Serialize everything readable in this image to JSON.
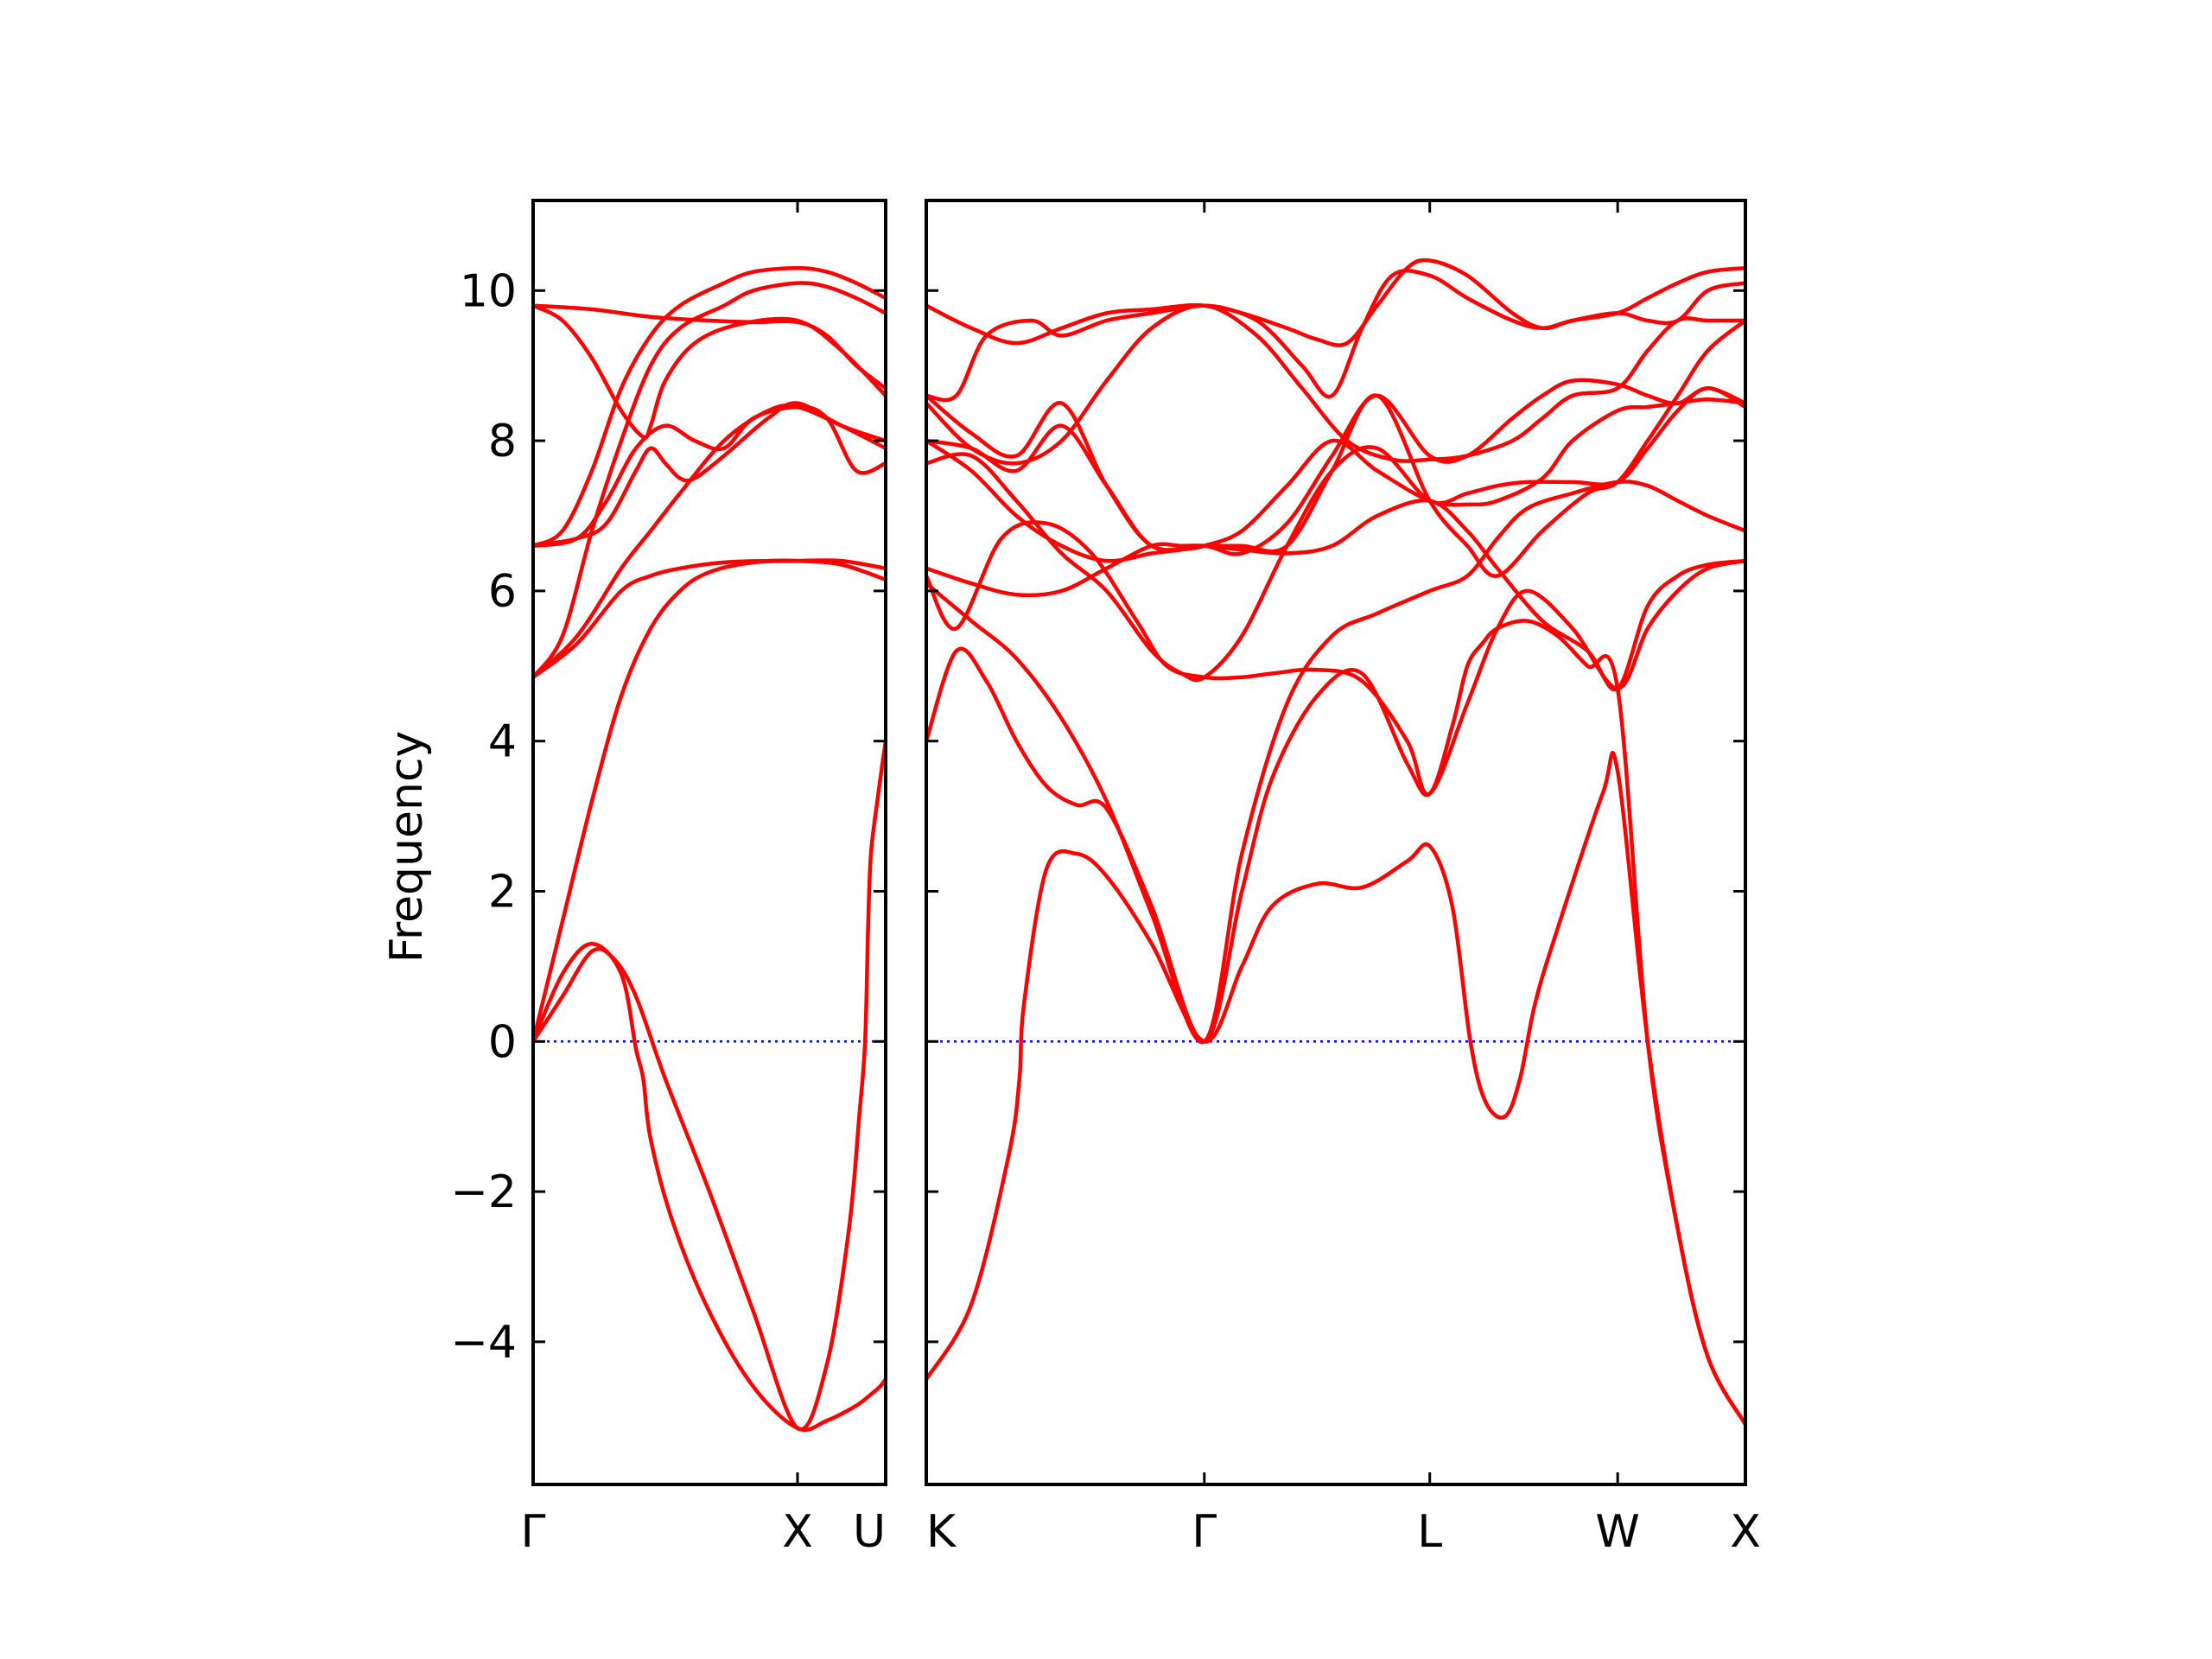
{
  "chart_data": {
    "type": "line",
    "title": "",
    "ylabel": "Frequency",
    "ylim": [
      -5.9,
      11.2
    ],
    "yticks": [
      -4,
      -2,
      0,
      2,
      4,
      6,
      8,
      10
    ],
    "ytick_labels": [
      "−4",
      "−2",
      "0",
      "2",
      "4",
      "6",
      "8",
      "10"
    ],
    "grid": false,
    "zero_line": {
      "y": 0,
      "color": "#0000ff",
      "style": "dotted"
    },
    "band_color": "#ff0000",
    "panels": [
      {
        "name": "panel-gamma-x-u",
        "xlim": [
          0,
          2.4
        ],
        "ticks": [
          {
            "x": 0,
            "label": "Γ"
          },
          {
            "x": 1.8,
            "label": "X"
          },
          {
            "x": 2.4,
            "label": "U"
          }
        ],
        "bands": [
          {
            "x": [
              0,
              0.2,
              0.4,
              0.6,
              0.7,
              0.75,
              0.8,
              0.95,
              1.2,
              1.5,
              1.8,
              2.0,
              2.2,
              2.3,
              2.36,
              2.4
            ],
            "y": [
              0,
              0.9,
              1.3,
              0.9,
              -0.1,
              -0.5,
              -1.3,
              -2.4,
              -3.6,
              -4.6,
              -5.15,
              -5.05,
              -4.85,
              -4.7,
              -4.6,
              -4.5
            ]
          },
          {
            "x": [
              0,
              0.2,
              0.4,
              0.55,
              0.7,
              0.9,
              1.2,
              1.5,
              1.8,
              2.0,
              2.15,
              2.22,
              2.26,
              2.28,
              2.3,
              2.35,
              2.4
            ],
            "y": [
              0,
              0.6,
              1.2,
              1.1,
              0.6,
              -0.5,
              -2.0,
              -3.6,
              -5.15,
              -4.3,
              -2.5,
              -1.0,
              0.0,
              1.5,
              2.5,
              3.3,
              4.0
            ]
          },
          {
            "x": [
              0,
              0.2,
              0.4,
              0.6,
              0.8,
              1.0,
              1.2,
              1.5,
              1.8,
              2.1,
              2.4
            ],
            "y": [
              0,
              1.6,
              3.2,
              4.6,
              5.5,
              6.0,
              6.25,
              6.38,
              6.4,
              6.4,
              6.3
            ]
          },
          {
            "x": [
              0,
              0.3,
              0.6,
              0.8,
              1.0,
              1.3,
              1.6,
              1.8,
              2.1,
              2.4
            ],
            "y": [
              4.85,
              5.3,
              6.0,
              6.2,
              6.3,
              6.38,
              6.4,
              6.4,
              6.35,
              6.15
            ]
          },
          {
            "x": [
              0,
              0.3,
              0.6,
              0.8,
              1.0,
              1.3,
              1.6,
              1.8,
              2.1,
              2.4
            ],
            "y": [
              4.85,
              5.4,
              6.3,
              6.8,
              7.3,
              8.0,
              8.4,
              8.45,
              8.2,
              7.9
            ]
          },
          {
            "x": [
              0,
              0.3,
              0.5,
              0.7,
              0.8,
              0.9,
              1.0,
              1.1,
              1.3,
              1.6,
              1.8,
              2.1,
              2.4
            ],
            "y": [
              6.6,
              6.7,
              6.9,
              7.6,
              7.9,
              7.7,
              7.5,
              7.5,
              7.8,
              8.3,
              8.5,
              8.2,
              8.0
            ]
          },
          {
            "x": [
              0,
              0.3,
              0.5,
              0.7,
              0.9,
              1.1,
              1.3,
              1.5,
              1.8,
              2.0,
              2.2,
              2.4
            ],
            "y": [
              6.6,
              6.7,
              7.2,
              7.9,
              8.2,
              8.0,
              7.9,
              8.3,
              8.45,
              8.3,
              7.6,
              7.7
            ]
          },
          {
            "x": [
              0,
              0.2,
              0.4,
              0.6,
              0.8,
              1.0,
              1.3,
              1.5,
              1.8,
              2.0,
              2.2,
              2.4
            ],
            "y": [
              6.6,
              6.8,
              7.6,
              8.7,
              9.4,
              9.8,
              10.1,
              10.25,
              10.3,
              10.25,
              10.1,
              9.9
            ]
          },
          {
            "x": [
              0,
              0.2,
              0.4,
              0.6,
              0.8,
              1.0,
              1.3,
              1.5,
              1.8,
              2.0,
              2.2,
              2.4
            ],
            "y": [
              4.85,
              5.4,
              6.8,
              8.0,
              9.0,
              9.5,
              9.8,
              10.0,
              10.1,
              10.05,
              9.9,
              9.7
            ]
          },
          {
            "x": [
              0,
              0.2,
              0.4,
              0.6,
              0.75,
              0.8,
              0.9,
              1.1,
              1.4,
              1.8,
              2.1,
              2.4
            ],
            "y": [
              9.8,
              9.6,
              9.1,
              8.4,
              8.05,
              8.2,
              8.8,
              9.3,
              9.55,
              9.6,
              9.2,
              8.6
            ]
          },
          {
            "x": [
              0,
              0.4,
              0.8,
              1.2,
              1.5,
              1.8,
              2.0,
              2.2,
              2.4
            ],
            "y": [
              9.8,
              9.75,
              9.65,
              9.6,
              9.58,
              9.58,
              9.4,
              9.0,
              8.7
            ]
          }
        ]
      },
      {
        "name": "panel-k-gamma-l-w-x",
        "xlim": [
          0,
          5.45
        ],
        "ticks": [
          {
            "x": 0,
            "label": "K"
          },
          {
            "x": 1.85,
            "label": "Γ"
          },
          {
            "x": 3.35,
            "label": "L"
          },
          {
            "x": 4.6,
            "label": "W"
          },
          {
            "x": 5.45,
            "label": "X"
          }
        ],
        "bands": [
          {
            "x": [
              0,
              0.3,
              0.55,
              0.62,
              0.65,
              0.8,
              1.0,
              1.2,
              1.5,
              1.85,
              2.1,
              2.3,
              2.6,
              2.9,
              3.2,
              3.35,
              3.5,
              3.62,
              3.72,
              3.85,
              3.95,
              4.05,
              4.2,
              4.5,
              4.6,
              4.8,
              5.0,
              5.2,
              5.45
            ],
            "y": [
              -4.5,
              -3.5,
              -1.5,
              -0.5,
              0.5,
              2.3,
              2.5,
              2.2,
              1.3,
              0.0,
              1.0,
              1.8,
              2.1,
              2.05,
              2.4,
              2.6,
              1.8,
              0.0,
              -0.8,
              -1.0,
              -0.5,
              0.5,
              1.5,
              3.3,
              3.6,
              0.0,
              -2.5,
              -4.2,
              -5.1
            ]
          },
          {
            "x": [
              0,
              0.2,
              0.4,
              0.6,
              0.8,
              1.0,
              1.2,
              1.5,
              1.85,
              2.1,
              2.3,
              2.6,
              2.9,
              3.2,
              3.35,
              3.5,
              3.6,
              3.7,
              3.8,
              4.0,
              4.2,
              4.4,
              4.6,
              4.8,
              5.0,
              5.2,
              5.45
            ],
            "y": [
              4.0,
              5.2,
              4.8,
              4.0,
              3.4,
              3.15,
              3.1,
              1.8,
              0.0,
              2.0,
              3.5,
              4.6,
              4.9,
              3.7,
              3.3,
              4.2,
              5.0,
              5.3,
              5.5,
              5.6,
              5.4,
              5.0,
              4.7,
              0.0,
              -2.5,
              -4.2,
              -5.1
            ]
          },
          {
            "x": [
              0,
              0.3,
              0.6,
              0.9,
              1.2,
              1.5,
              1.85,
              2.1,
              2.4,
              2.7,
              3.0,
              3.35,
              3.6,
              3.8,
              4.0,
              4.3,
              4.6,
              4.8,
              5.0,
              5.2,
              5.45
            ],
            "y": [
              6.1,
              5.6,
              5.1,
              4.3,
              3.2,
              1.7,
              0.0,
              2.5,
              4.5,
              5.4,
              5.7,
              6.0,
              6.2,
              6.7,
              7.1,
              7.3,
              7.45,
              7.4,
              7.2,
              7.0,
              6.8
            ]
          },
          {
            "x": [
              0,
              0.2,
              0.5,
              0.8,
              1.1,
              1.4,
              1.6,
              1.85,
              2.1,
              2.3,
              2.6,
              2.9,
              3.2,
              3.35,
              3.6,
              3.8,
              4.0,
              4.3,
              4.6,
              4.8,
              5.0,
              5.2,
              5.45
            ],
            "y": [
              6.2,
              5.5,
              6.7,
              6.9,
              6.5,
              5.6,
              5.0,
              4.85,
              4.85,
              4.9,
              4.95,
              4.8,
              4.0,
              3.3,
              4.5,
              5.5,
              6.0,
              5.5,
              4.7,
              5.5,
              6.0,
              6.3,
              6.4
            ]
          },
          {
            "x": [
              0,
              0.3,
              0.6,
              0.9,
              1.2,
              1.5,
              1.7,
              1.85,
              2.1,
              2.4,
              2.7,
              3.0,
              3.35,
              3.6,
              3.8,
              4.1,
              4.4,
              4.6,
              4.8,
              5.0,
              5.2,
              5.45
            ],
            "y": [
              6.3,
              6.1,
              5.95,
              6.0,
              6.3,
              6.6,
              6.6,
              6.6,
              6.55,
              6.5,
              6.6,
              7.0,
              7.2,
              6.8,
              6.3,
              5.6,
              5.2,
              4.7,
              5.8,
              6.2,
              6.35,
              6.4
            ]
          },
          {
            "x": [
              0,
              0.3,
              0.6,
              0.9,
              1.2,
              1.5,
              1.7,
              1.85,
              2.1,
              2.4,
              2.7,
              3.0,
              3.35,
              3.6,
              3.8,
              4.0,
              4.3,
              4.6,
              4.8,
              5.0,
              5.2,
              5.45
            ],
            "y": [
              7.7,
              7.8,
              7.2,
              6.5,
              6.0,
              5.2,
              4.9,
              4.85,
              5.4,
              6.6,
              7.6,
              7.9,
              7.2,
              7.3,
              7.4,
              7.45,
              7.45,
              7.45,
              7.9,
              8.4,
              8.7,
              8.45
            ]
          },
          {
            "x": [
              0,
              0.3,
              0.6,
              0.9,
              1.2,
              1.5,
              1.7,
              1.85,
              2.1,
              2.4,
              2.7,
              3.0,
              3.35,
              3.6,
              3.8,
              4.1,
              4.3,
              4.6,
              4.8,
              5.0,
              5.2,
              5.45
            ],
            "y": [
              8.0,
              7.6,
              7.0,
              6.6,
              6.4,
              6.5,
              6.55,
              6.6,
              6.8,
              7.4,
              8.0,
              7.6,
              7.2,
              7.15,
              7.2,
              7.5,
              8.0,
              8.4,
              8.45,
              8.5,
              8.55,
              8.5
            ]
          },
          {
            "x": [
              0,
              0.3,
              0.6,
              0.9,
              1.2,
              1.5,
              1.85,
              2.1,
              2.4,
              2.7,
              3.0,
              3.35,
              3.6,
              3.8,
              4.1,
              4.4,
              4.6,
              4.8,
              5.0,
              5.2,
              5.45
            ],
            "y": [
              8.0,
              7.9,
              7.6,
              8.2,
              7.4,
              6.6,
              6.6,
              6.6,
              6.6,
              7.6,
              8.6,
              7.2,
              6.6,
              6.2,
              6.8,
              7.3,
              7.45,
              8.0,
              8.6,
              9.2,
              9.6
            ]
          },
          {
            "x": [
              0,
              0.3,
              0.6,
              0.9,
              1.2,
              1.5,
              1.85,
              2.1,
              2.4,
              2.7,
              3.0,
              3.35,
              3.6,
              3.9,
              4.1,
              4.3,
              4.6,
              4.8,
              5.0,
              5.2,
              5.45
            ],
            "y": [
              8.6,
              8.1,
              7.8,
              8.5,
              7.4,
              6.6,
              6.6,
              6.5,
              6.9,
              7.8,
              8.6,
              7.8,
              7.8,
              8.3,
              8.6,
              8.8,
              8.75,
              8.6,
              8.5,
              8.7,
              8.5
            ]
          },
          {
            "x": [
              0,
              0.3,
              0.6,
              0.9,
              1.2,
              1.5,
              1.85,
              2.2,
              2.5,
              2.8,
              3.1,
              3.35,
              3.6,
              3.9,
              4.1,
              4.3,
              4.6,
              4.8,
              5.0,
              5.2,
              5.45
            ],
            "y": [
              8.5,
              7.9,
              7.7,
              8.0,
              8.8,
              9.5,
              9.8,
              9.4,
              8.7,
              8.0,
              7.75,
              7.75,
              7.8,
              8.0,
              8.3,
              8.6,
              8.7,
              9.2,
              9.6,
              9.6,
              9.6
            ]
          },
          {
            "x": [
              0,
              0.3,
              0.6,
              0.9,
              1.2,
              1.5,
              1.85,
              2.2,
              2.5,
              2.7,
              2.9,
              3.1,
              3.35,
              3.6,
              3.9,
              4.1,
              4.3,
              4.6,
              4.8,
              5.0,
              5.2,
              5.45
            ],
            "y": [
              9.8,
              9.5,
              9.3,
              9.5,
              9.7,
              9.75,
              9.8,
              9.6,
              9.0,
              8.6,
              9.5,
              10.2,
              10.2,
              9.9,
              9.6,
              9.5,
              9.6,
              9.7,
              9.9,
              10.1,
              10.25,
              10.3
            ]
          },
          {
            "x": [
              0,
              0.2,
              0.4,
              0.7,
              0.9,
              1.2,
              1.5,
              1.85,
              2.1,
              2.4,
              2.6,
              2.8,
              3.0,
              3.2,
              3.35,
              3.6,
              3.9,
              4.1,
              4.3,
              4.6,
              4.8,
              5.0,
              5.2,
              5.45
            ],
            "y": [
              8.6,
              8.6,
              9.4,
              9.6,
              9.4,
              9.6,
              9.7,
              9.8,
              9.7,
              9.5,
              9.35,
              9.3,
              9.8,
              10.3,
              10.4,
              10.2,
              9.7,
              9.5,
              9.6,
              9.7,
              9.6,
              9.6,
              10.0,
              10.1
            ]
          }
        ]
      }
    ]
  }
}
